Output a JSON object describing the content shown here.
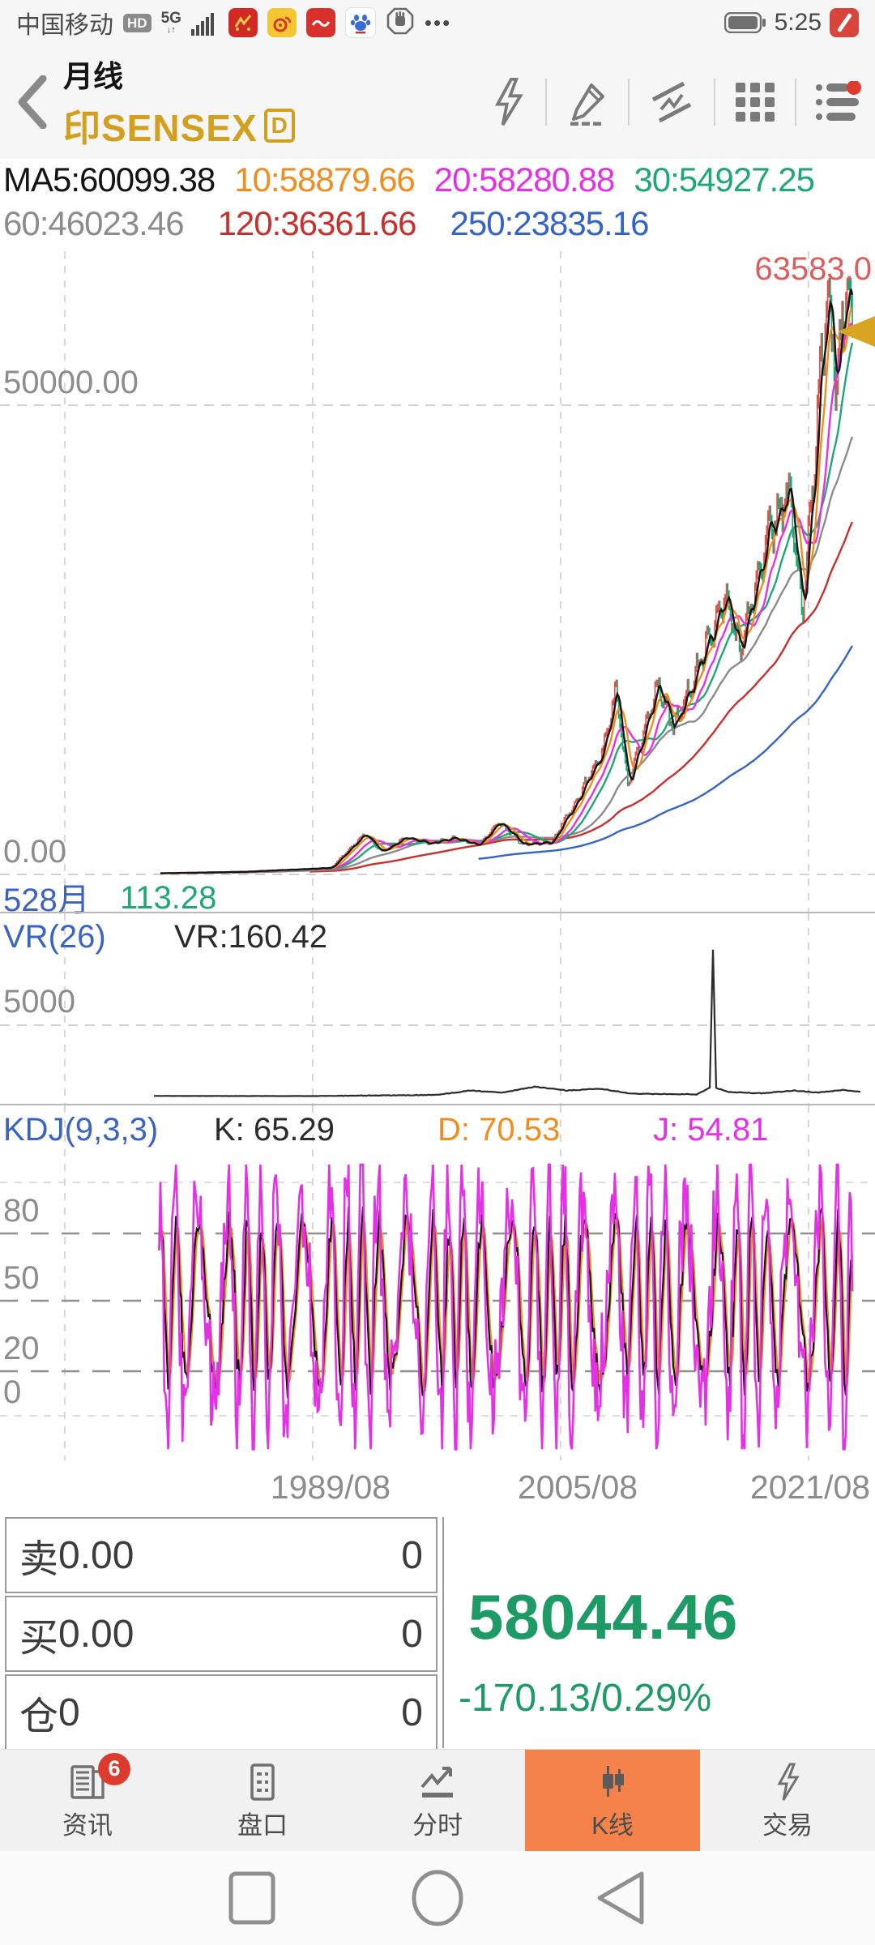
{
  "colors": {
    "accent_gold": "#d2a01e",
    "up_red": "#d9534f",
    "down_green": "#1fa875",
    "price_green": "#1e9a67",
    "active_tab_orange": "#f5814b",
    "badge_red": "#dd3b30",
    "label_blue": "#3b63c4",
    "annotation_red": "#d95f5f",
    "marker_gold": "#d9a521"
  },
  "status_bar": {
    "carrier": "中国移动",
    "hd": "HD",
    "network": "5G",
    "more_dots": "•••",
    "time": "5:25"
  },
  "header": {
    "period": "月线",
    "symbol": "印SENSEX",
    "symbol_badge": "D"
  },
  "ma_row": {
    "line1": [
      {
        "text": "MA5:60099.38",
        "color": "#141414"
      },
      {
        "text": "10:58879.66",
        "color": "#ef8d1f"
      },
      {
        "text": "20:58280.88",
        "color": "#e531e5"
      },
      {
        "text": "30:54927.25",
        "color": "#1fa875"
      }
    ],
    "line2": [
      {
        "text": "60:46023.46",
        "color": "#8c8c8c"
      },
      {
        "text": "120:36361.66",
        "color": "#c9302c"
      },
      {
        "text": "250:23835.16",
        "color": "#3463c9"
      }
    ]
  },
  "chart_data": [
    {
      "type": "candlestick",
      "name": "印SENSEX 月线 K线",
      "x_axis_labels": [
        "1989/08",
        "2005/08",
        "2021/08"
      ],
      "y_axis_labels": [
        "50000.00",
        "0.00"
      ],
      "ylim": [
        0,
        65000
      ],
      "high_annotation": "63583.0",
      "low_annotation": "113.28",
      "visible_bars_label": "528月",
      "last_close": 58044.46,
      "grid": true,
      "ma_series": [
        {
          "name": "MA5",
          "window": 5,
          "value": 60099.38,
          "color": "#141414"
        },
        {
          "name": "MA10",
          "window": 10,
          "value": 58879.66,
          "color": "#ef8d1f"
        },
        {
          "name": "MA20",
          "window": 20,
          "value": 58280.88,
          "color": "#e531e5"
        },
        {
          "name": "MA30",
          "window": 30,
          "value": 54927.25,
          "color": "#1fa875"
        },
        {
          "name": "MA60",
          "window": 60,
          "value": 46023.46,
          "color": "#8c8c8c"
        },
        {
          "name": "MA120",
          "window": 120,
          "value": 36361.66,
          "color": "#c9302c"
        },
        {
          "name": "MA250",
          "window": 250,
          "value": 23835.16,
          "color": "#3463c9"
        }
      ],
      "close_anchors": [
        [
          190,
          115
        ],
        [
          300,
          280
        ],
        [
          408,
          700
        ],
        [
          450,
          4400
        ],
        [
          470,
          2400
        ],
        [
          500,
          3900
        ],
        [
          530,
          3300
        ],
        [
          560,
          3900
        ],
        [
          590,
          3100
        ],
        [
          615,
          5600
        ],
        [
          645,
          3200
        ],
        [
          680,
          3400
        ],
        [
          713,
          8000
        ],
        [
          745,
          13500
        ],
        [
          760,
          19800
        ],
        [
          775,
          9200
        ],
        [
          812,
          20500
        ],
        [
          831,
          15500
        ],
        [
          853,
          20200
        ],
        [
          895,
          29400
        ],
        [
          914,
          24000
        ],
        [
          948,
          36300
        ],
        [
          975,
          40800
        ],
        [
          990,
          27500
        ],
        [
          1010,
          50000
        ],
        [
          1020,
          61800
        ],
        [
          1033,
          52600
        ],
        [
          1045,
          63200
        ],
        [
          1052,
          58044.46
        ]
      ]
    },
    {
      "type": "line",
      "name": "VR(26)",
      "current_label": "VR:160.42",
      "current": 160.42,
      "y_gridline_label": "5000",
      "y_gridline_value": 5000,
      "line_color": "#2b2b2b",
      "anchors": [
        [
          190,
          150
        ],
        [
          380,
          140
        ],
        [
          540,
          220
        ],
        [
          580,
          520
        ],
        [
          620,
          380
        ],
        [
          660,
          780
        ],
        [
          700,
          520
        ],
        [
          740,
          650
        ],
        [
          780,
          300
        ],
        [
          860,
          260
        ],
        [
          876,
          700
        ],
        [
          880,
          10200
        ],
        [
          884,
          700
        ],
        [
          900,
          420
        ],
        [
          940,
          330
        ],
        [
          980,
          520
        ],
        [
          1010,
          380
        ],
        [
          1040,
          560
        ],
        [
          1062,
          430
        ]
      ]
    },
    {
      "type": "line",
      "name": "KDJ(9,3,3)",
      "k_label": "K: 65.29",
      "d_label": "D: 70.53",
      "j_label": "J: 54.81",
      "k": 65.29,
      "d": 70.53,
      "j": 54.81,
      "level_labels": [
        "80",
        "50",
        "20",
        "0"
      ],
      "levels": [
        80,
        50,
        20,
        0
      ],
      "series_colors": {
        "k": "#141414",
        "d": "#ef8d1f",
        "j": "#e531e5"
      }
    }
  ],
  "trade_panel": {
    "rows": [
      {
        "label": "卖",
        "value": "0.00",
        "right": "0"
      },
      {
        "label": "买",
        "value": "0.00",
        "right": "0"
      },
      {
        "label": "仓",
        "value": "0",
        "right": "0"
      }
    ],
    "price": "58044.46",
    "change": "-170.13/0.29%"
  },
  "nav": {
    "tabs": [
      {
        "label": "资讯",
        "badge": "6"
      },
      {
        "label": "盘口"
      },
      {
        "label": "分时"
      },
      {
        "label": "K线",
        "active": true
      },
      {
        "label": "交易"
      }
    ]
  }
}
